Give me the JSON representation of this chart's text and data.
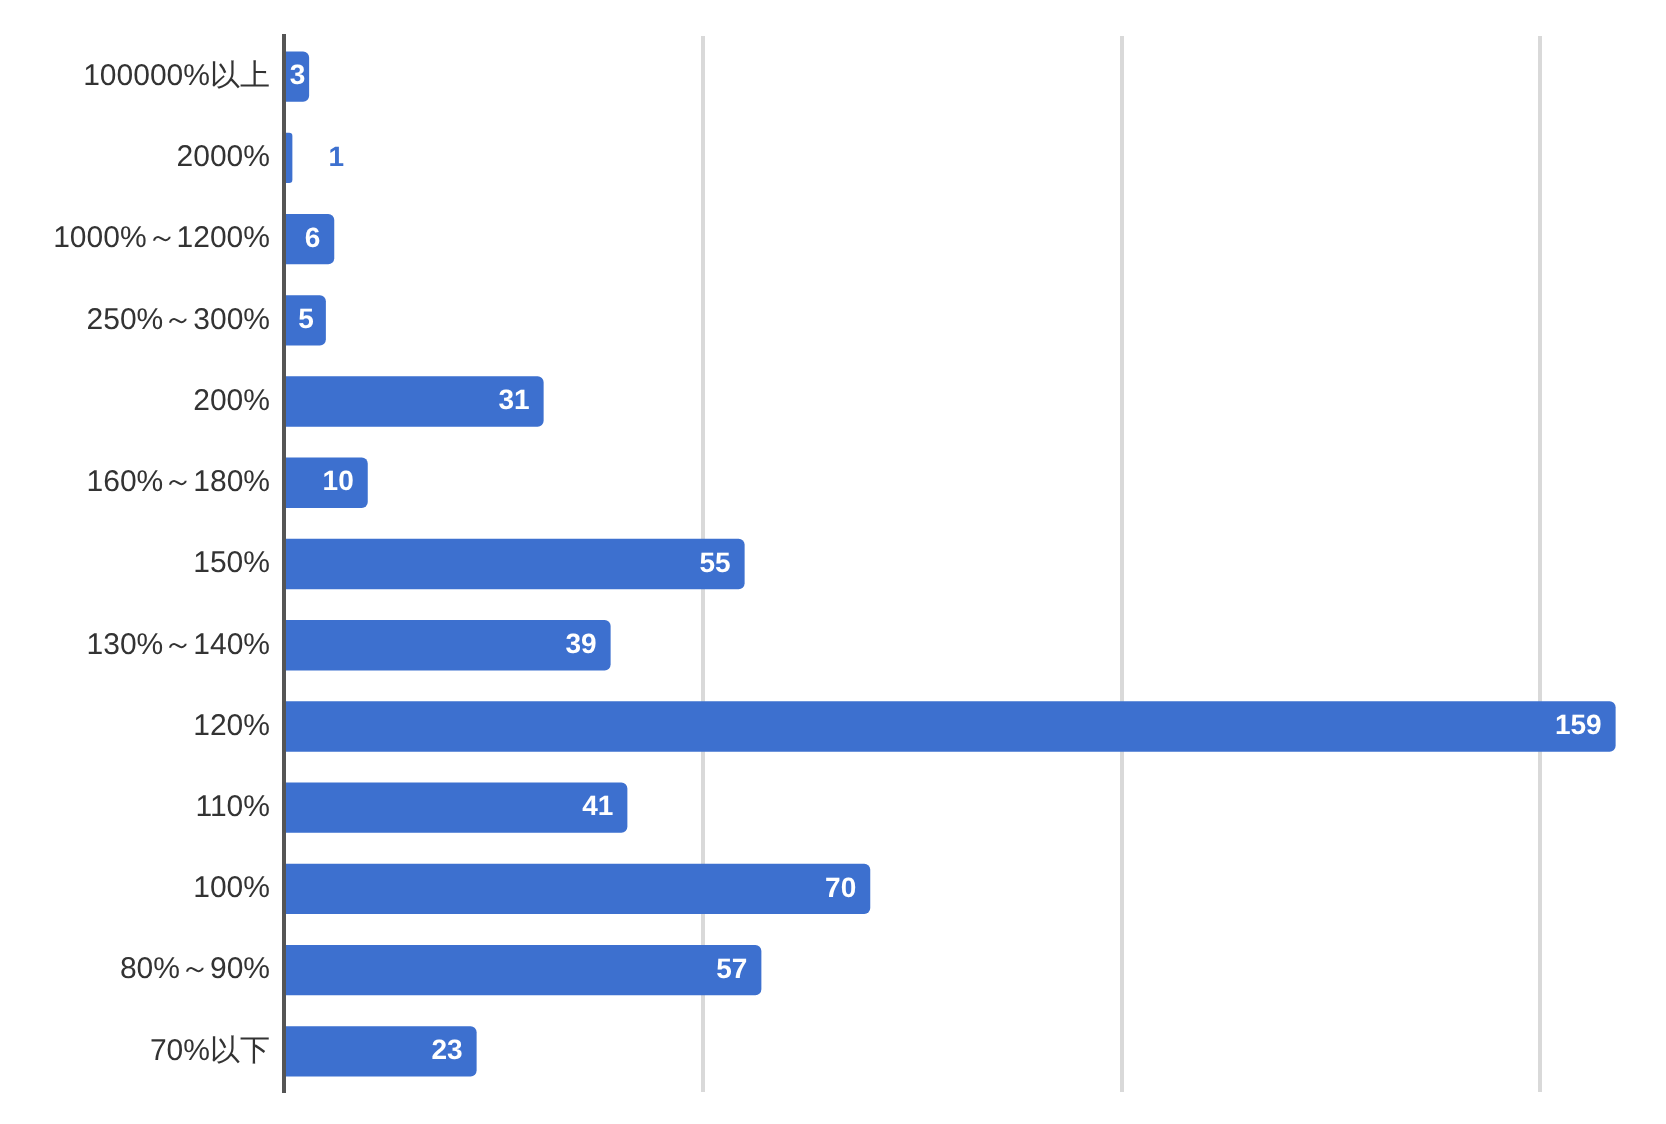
{
  "chart_data": {
    "type": "bar",
    "orientation": "horizontal",
    "categories": [
      "100000%以上",
      "2000%",
      "1000%～1200%",
      "250%～300%",
      "200%",
      "160%～180%",
      "150%",
      "130%～140%",
      "120%",
      "110%",
      "100%",
      "80%～90%",
      "70%以下"
    ],
    "values": [
      3,
      1,
      6,
      5,
      31,
      10,
      55,
      39,
      159,
      41,
      70,
      57,
      23
    ],
    "color": "#3d70cf",
    "xlim": [
      0,
      160
    ],
    "xticks": [
      {
        "value": 0,
        "label": null
      },
      {
        "value": 50,
        "label": null
      },
      {
        "value": 100,
        "label": null
      },
      {
        "value": 150,
        "label": null
      }
    ],
    "grid": "x",
    "tick_labels": "y",
    "data_labels": true
  }
}
